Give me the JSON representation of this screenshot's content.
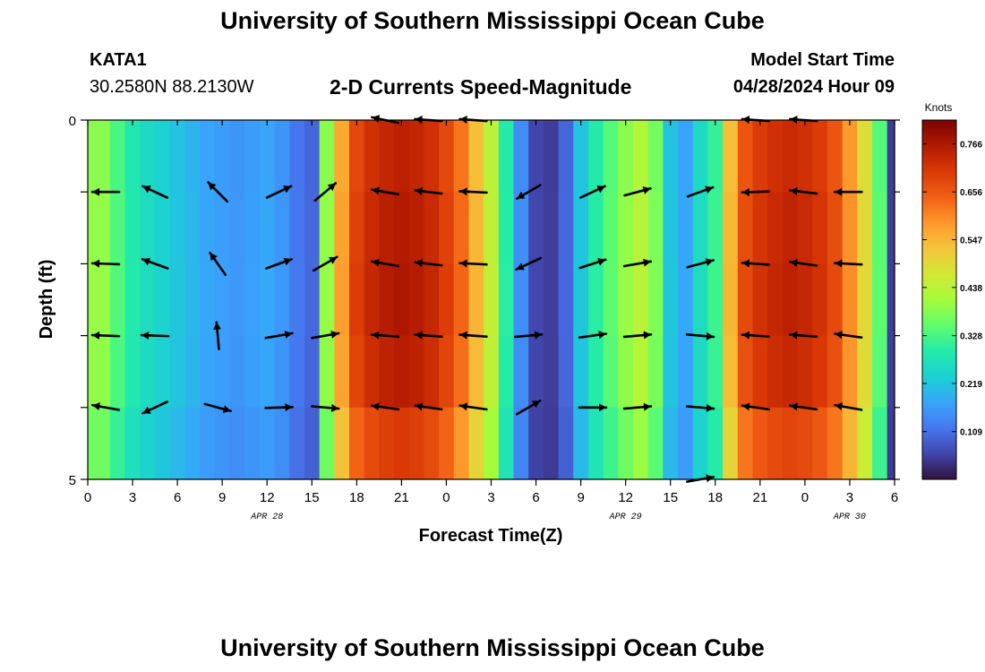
{
  "header": {
    "title": "University of Southern Mississippi Ocean Cube",
    "station": "KATA1",
    "coords": "30.2580N  88.2130W",
    "subtitle": "2-D Currents Speed-Magnitude",
    "model_start_label": "Model Start Time",
    "model_start_value": "04/28/2024 Hour 09"
  },
  "footer": {
    "title": "University of Southern Mississippi Ocean Cube"
  },
  "chart_data": {
    "type": "heatmap",
    "title": "2-D Currents Speed-Magnitude",
    "xlabel": "Forecast Time(Z)",
    "ylabel": "Depth (ft)",
    "x_hours_from_start": [
      0,
      54
    ],
    "x_tick_labels": [
      "0",
      "3",
      "6",
      "9",
      "12",
      "15",
      "18",
      "21",
      "0",
      "3",
      "6",
      "9",
      "12",
      "15",
      "18",
      "21",
      "0",
      "3",
      "6"
    ],
    "date_labels": [
      {
        "label": "APR 28",
        "hour": 12
      },
      {
        "label": "APR 29",
        "hour": 36
      },
      {
        "label": "APR 30",
        "hour": 51
      }
    ],
    "ylim": [
      0,
      5
    ],
    "y_tick_labels": [
      "0",
      "5"
    ],
    "colorbar": {
      "title": "Knots",
      "range": [
        0,
        0.82
      ],
      "tick_labels": [
        "0.766",
        "0.656",
        "0.547",
        "0.438",
        "0.328",
        "0.219",
        "0.109"
      ]
    },
    "speed_by_hour_knots": [
      {
        "h": 0,
        "v": 0.4
      },
      {
        "h": 1,
        "v": 0.4
      },
      {
        "h": 2,
        "v": 0.34
      },
      {
        "h": 3,
        "v": 0.29
      },
      {
        "h": 4,
        "v": 0.26
      },
      {
        "h": 5,
        "v": 0.24
      },
      {
        "h": 6,
        "v": 0.22
      },
      {
        "h": 7,
        "v": 0.2
      },
      {
        "h": 8,
        "v": 0.18
      },
      {
        "h": 9,
        "v": 0.17
      },
      {
        "h": 10,
        "v": 0.16
      },
      {
        "h": 11,
        "v": 0.17
      },
      {
        "h": 12,
        "v": 0.18
      },
      {
        "h": 13,
        "v": 0.16
      },
      {
        "h": 14,
        "v": 0.12
      },
      {
        "h": 15,
        "v": 0.1
      },
      {
        "h": 16,
        "v": 0.4
      },
      {
        "h": 17,
        "v": 0.58
      },
      {
        "h": 18,
        "v": 0.7
      },
      {
        "h": 19,
        "v": 0.74
      },
      {
        "h": 20,
        "v": 0.76
      },
      {
        "h": 21,
        "v": 0.77
      },
      {
        "h": 22,
        "v": 0.76
      },
      {
        "h": 23,
        "v": 0.74
      },
      {
        "h": 24,
        "v": 0.7
      },
      {
        "h": 25,
        "v": 0.64
      },
      {
        "h": 26,
        "v": 0.55
      },
      {
        "h": 27,
        "v": 0.45
      },
      {
        "h": 28,
        "v": 0.3
      },
      {
        "h": 29,
        "v": 0.15
      },
      {
        "h": 30,
        "v": 0.06
      },
      {
        "h": 31,
        "v": 0.05
      },
      {
        "h": 32,
        "v": 0.1
      },
      {
        "h": 33,
        "v": 0.22
      },
      {
        "h": 34,
        "v": 0.3
      },
      {
        "h": 35,
        "v": 0.35
      },
      {
        "h": 36,
        "v": 0.4
      },
      {
        "h": 37,
        "v": 0.44
      },
      {
        "h": 38,
        "v": 0.38
      },
      {
        "h": 39,
        "v": 0.22
      },
      {
        "h": 40,
        "v": 0.18
      },
      {
        "h": 41,
        "v": 0.26
      },
      {
        "h": 42,
        "v": 0.32
      },
      {
        "h": 43,
        "v": 0.55
      },
      {
        "h": 44,
        "v": 0.68
      },
      {
        "h": 45,
        "v": 0.72
      },
      {
        "h": 46,
        "v": 0.74
      },
      {
        "h": 47,
        "v": 0.75
      },
      {
        "h": 48,
        "v": 0.74
      },
      {
        "h": 49,
        "v": 0.72
      },
      {
        "h": 50,
        "v": 0.68
      },
      {
        "h": 51,
        "v": 0.6
      },
      {
        "h": 52,
        "v": 0.5
      },
      {
        "h": 53,
        "v": 0.35
      },
      {
        "h": 54,
        "v": 0.05
      }
    ],
    "vector_columns_hours": [
      1.2,
      4.5,
      8.7,
      12.8,
      15.9,
      19.9,
      22.8,
      25.8,
      29.5,
      33.8,
      36.8,
      41.0,
      44.7,
      47.9,
      50.9
    ],
    "vector_depths_ft": [
      0,
      1,
      2,
      3,
      4,
      5
    ],
    "vectors_deg_cw_from_east": [
      [
        null,
        null,
        null,
        null,
        null,
        -168,
        -176,
        -176,
        null,
        null,
        null,
        null,
        -176,
        -176,
        null
      ],
      [
        180,
        -155,
        -135,
        -25,
        -40,
        -170,
        -173,
        -177,
        150,
        -25,
        -15,
        -20,
        178,
        -173,
        180
      ],
      [
        -178,
        -160,
        235,
        -20,
        -30,
        -170,
        -173,
        -177,
        155,
        -18,
        -10,
        -15,
        -176,
        -172,
        -177
      ],
      [
        -178,
        -178,
        265,
        -10,
        -10,
        -176,
        -176,
        -176,
        -5,
        -8,
        -5,
        5,
        -176,
        -176,
        -172
      ],
      [
        -170,
        155,
        15,
        -2,
        5,
        -172,
        -172,
        -172,
        -30,
        0,
        -5,
        5,
        -172,
        -172,
        -170
      ],
      [
        null,
        null,
        null,
        null,
        null,
        null,
        null,
        null,
        null,
        null,
        null,
        -10,
        null,
        null,
        null
      ]
    ]
  }
}
